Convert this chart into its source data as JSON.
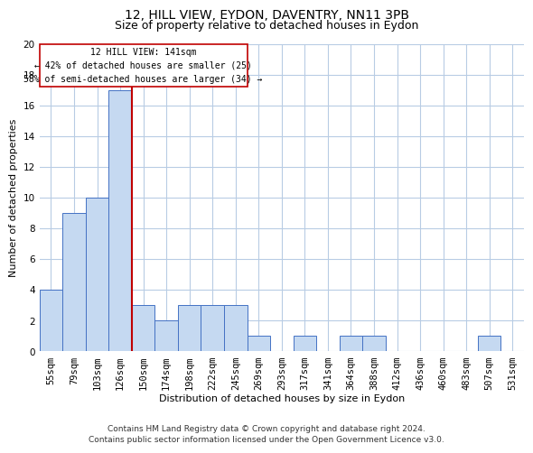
{
  "title": "12, HILL VIEW, EYDON, DAVENTRY, NN11 3PB",
  "subtitle": "Size of property relative to detached houses in Eydon",
  "xlabel": "Distribution of detached houses by size in Eydon",
  "ylabel": "Number of detached properties",
  "categories": [
    "55sqm",
    "79sqm",
    "103sqm",
    "126sqm",
    "150sqm",
    "174sqm",
    "198sqm",
    "222sqm",
    "245sqm",
    "269sqm",
    "293sqm",
    "317sqm",
    "341sqm",
    "364sqm",
    "388sqm",
    "412sqm",
    "436sqm",
    "460sqm",
    "483sqm",
    "507sqm",
    "531sqm"
  ],
  "values": [
    4,
    9,
    10,
    17,
    3,
    2,
    3,
    3,
    3,
    1,
    0,
    1,
    0,
    1,
    1,
    0,
    0,
    0,
    0,
    1,
    0
  ],
  "bar_color": "#c5d9f1",
  "bar_edge_color": "#4472c4",
  "ylim": [
    0,
    20
  ],
  "yticks": [
    0,
    2,
    4,
    6,
    8,
    10,
    12,
    14,
    16,
    18,
    20
  ],
  "vline_x_index": 3,
  "vline_color": "#c00000",
  "annotation_line1": "12 HILL VIEW: 141sqm",
  "annotation_line2": "← 42% of detached houses are smaller (25)",
  "annotation_line3": "58% of semi-detached houses are larger (34) →",
  "footer_line1": "Contains HM Land Registry data © Crown copyright and database right 2024.",
  "footer_line2": "Contains public sector information licensed under the Open Government Licence v3.0.",
  "bg_color": "#ffffff",
  "grid_color": "#b8cce4",
  "title_fontsize": 10,
  "subtitle_fontsize": 9,
  "label_fontsize": 8,
  "tick_fontsize": 7.5,
  "footer_fontsize": 6.5,
  "annot_fontsize": 7
}
